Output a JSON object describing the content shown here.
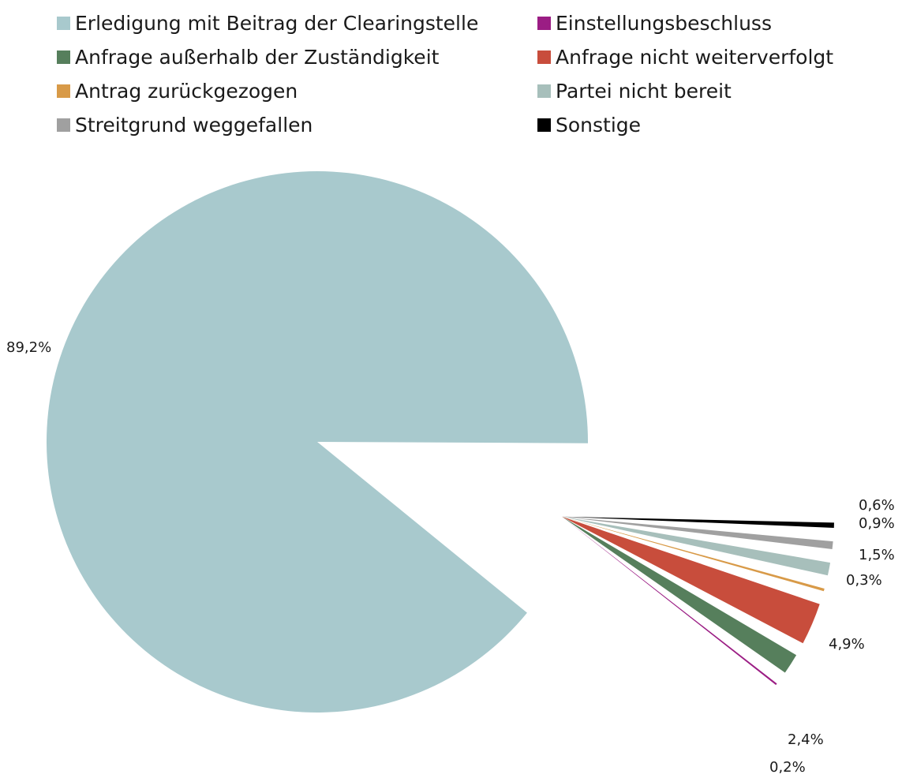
{
  "chart_data": {
    "type": "pie",
    "title": "",
    "legend_position": "top",
    "slices": [
      {
        "label": "Erledigung mit Beitrag der Clearingstelle",
        "value": 89.2,
        "value_label": "89,2%",
        "color": "#a8c9cd"
      },
      {
        "label": "Einstellungsbeschluss",
        "value": 0.2,
        "value_label": "0,2%",
        "color": "#9b1d84"
      },
      {
        "label": "Anfrage außerhalb der Zuständigkeit",
        "value": 2.4,
        "value_label": "2,4%",
        "color": "#567f5c"
      },
      {
        "label": "Anfrage nicht weiterverfolgt",
        "value": 4.9,
        "value_label": "4,9%",
        "color": "#c84d3c"
      },
      {
        "label": "Antrag zurückgezogen",
        "value": 0.3,
        "value_label": "0,3%",
        "color": "#d89a48"
      },
      {
        "label": "Partei nicht bereit",
        "value": 1.5,
        "value_label": "1,5%",
        "color": "#a7bfbb"
      },
      {
        "label": "Streitgrund weggefallen",
        "value": 0.9,
        "value_label": "0,9%",
        "color": "#a0a0a0"
      },
      {
        "label": "Sonstige",
        "value": 0.6,
        "value_label": "0,6%",
        "color": "#000000"
      }
    ]
  }
}
